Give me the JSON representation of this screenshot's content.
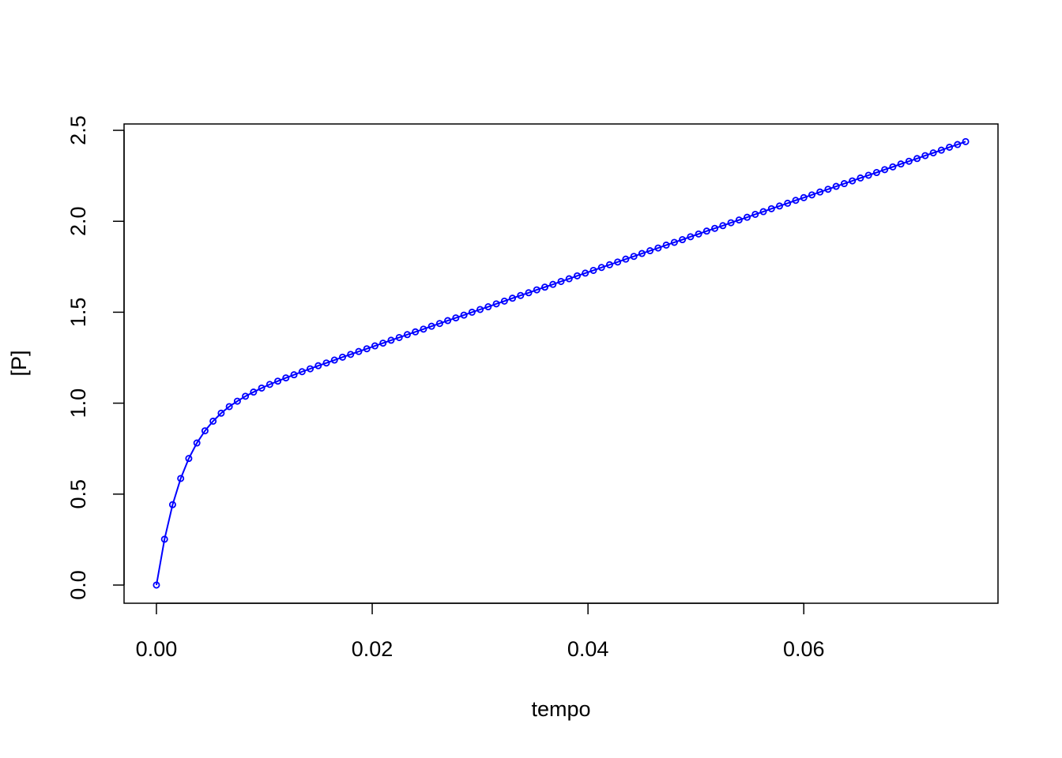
{
  "chart_data": {
    "type": "line",
    "x_label": "tempo",
    "y_label": "[P]",
    "x": [
      0,
      0.00075,
      0.0015,
      0.00225,
      0.003,
      0.00375,
      0.0045,
      0.00525,
      0.006,
      0.00675,
      0.0075,
      0.00825,
      0.009,
      0.00975,
      0.0105,
      0.01125,
      0.012,
      0.01275,
      0.0135,
      0.01425,
      0.015,
      0.01575,
      0.0165,
      0.01725,
      0.018,
      0.01875,
      0.0195,
      0.02025,
      0.021,
      0.02175,
      0.0225,
      0.02325,
      0.024,
      0.02475,
      0.0255,
      0.02625,
      0.027,
      0.02775,
      0.0285,
      0.02925,
      0.03,
      0.03075,
      0.0315,
      0.03225,
      0.033,
      0.03375,
      0.0345,
      0.03525,
      0.036,
      0.03675,
      0.0375,
      0.03825,
      0.039,
      0.03975,
      0.0405,
      0.04125,
      0.042,
      0.04275,
      0.0435,
      0.04425,
      0.045,
      0.04575,
      0.0465,
      0.04725,
      0.048,
      0.04875,
      0.0495,
      0.05025,
      0.051,
      0.05175,
      0.0525,
      0.05325,
      0.054,
      0.05475,
      0.0555,
      0.05625,
      0.057,
      0.05775,
      0.0585,
      0.05925,
      0.06,
      0.06075,
      0.0615,
      0.06225,
      0.063,
      0.06375,
      0.0645,
      0.06525,
      0.066,
      0.06675,
      0.0675,
      0.06825,
      0.069,
      0.06975,
      0.0705,
      0.07125,
      0.072,
      0.07275,
      0.0735,
      0.07425,
      0.075
    ],
    "series": [
      {
        "color": "#0000ff",
        "values": [
          0,
          0.252,
          0.442,
          0.586,
          0.696,
          0.781,
          0.848,
          0.901,
          0.945,
          0.981,
          1.011,
          1.038,
          1.061,
          1.083,
          1.103,
          1.121,
          1.139,
          1.156,
          1.173,
          1.189,
          1.206,
          1.221,
          1.237,
          1.253,
          1.268,
          1.284,
          1.299,
          1.315,
          1.33,
          1.346,
          1.361,
          1.377,
          1.392,
          1.407,
          1.423,
          1.438,
          1.454,
          1.469,
          1.484,
          1.5,
          1.515,
          1.53,
          1.546,
          1.561,
          1.577,
          1.592,
          1.607,
          1.623,
          1.638,
          1.653,
          1.669,
          1.684,
          1.7,
          1.715,
          1.73,
          1.746,
          1.761,
          1.776,
          1.792,
          1.807,
          1.823,
          1.838,
          1.853,
          1.869,
          1.884,
          1.899,
          1.915,
          1.93,
          1.946,
          1.961,
          1.976,
          1.992,
          2.007,
          2.022,
          2.038,
          2.053,
          2.069,
          2.084,
          2.099,
          2.115,
          2.13,
          2.145,
          2.161,
          2.176,
          2.192,
          2.207,
          2.222,
          2.238,
          2.253,
          2.268,
          2.284,
          2.299,
          2.315,
          2.33,
          2.345,
          2.361,
          2.376,
          2.391,
          2.407,
          2.422,
          2.438
        ]
      }
    ],
    "xlim": [
      -0.003,
      0.078
    ],
    "ylim": [
      -0.1,
      2.535
    ],
    "xticks": [
      {
        "value": 0,
        "label": "0.00"
      },
      {
        "value": 0.02,
        "label": "0.02"
      },
      {
        "value": 0.04,
        "label": "0.04"
      },
      {
        "value": 0.06,
        "label": "0.06"
      }
    ],
    "yticks": [
      {
        "value": 0,
        "label": "0.0"
      },
      {
        "value": 0.5,
        "label": "0.5"
      },
      {
        "value": 1,
        "label": "1.0"
      },
      {
        "value": 1.5,
        "label": "1.5"
      },
      {
        "value": 2,
        "label": "2.0"
      },
      {
        "value": 2.5,
        "label": "2.5"
      }
    ],
    "markers": true,
    "grid": false
  }
}
